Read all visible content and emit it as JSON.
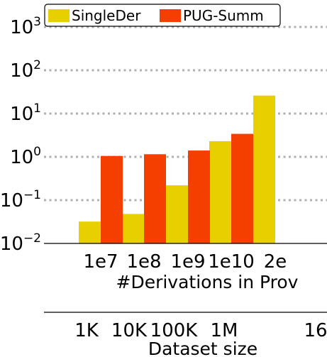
{
  "chart_data": {
    "type": "bar",
    "y_scale": "log",
    "ylim": [
      0.01,
      1000
    ],
    "y_ticks": [
      {
        "base": "10",
        "exp": "3"
      },
      {
        "base": "10",
        "exp": "2"
      },
      {
        "base": "10",
        "exp": "1"
      },
      {
        "base": "10",
        "exp": "0"
      },
      {
        "base": "10",
        "exp": "−1"
      },
      {
        "base": "10",
        "exp": "−2"
      }
    ],
    "categories": [
      "1e7",
      "1e8",
      "1e9",
      "1e10",
      "2e"
    ],
    "xlabel": "#Derivations in Prov",
    "secondary_x": {
      "ticks": [
        "1K",
        "10K",
        "100K",
        "1M",
        "16"
      ],
      "label": "Dataset size"
    },
    "grid": "horizontal dotted",
    "legend_position": "top",
    "series": [
      {
        "name": "SingleDer",
        "color": "#e8d000",
        "values": [
          0.032,
          0.048,
          0.22,
          2.3,
          26
        ]
      },
      {
        "name": "PUG-Summ",
        "color": "#f43f00",
        "values": [
          1.05,
          1.15,
          1.4,
          3.4,
          null
        ]
      }
    ]
  }
}
